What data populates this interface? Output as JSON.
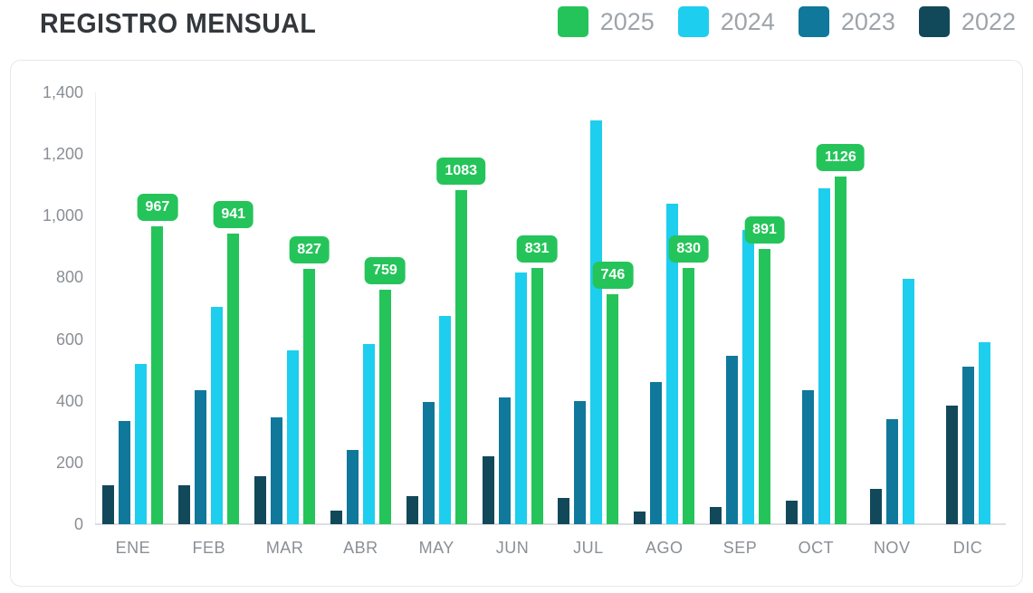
{
  "title": "REGISTRO MENSUAL",
  "legend": [
    {
      "label": "2025",
      "color": "#25c45a"
    },
    {
      "label": "2024",
      "color": "#1dceee"
    },
    {
      "label": "2023",
      "color": "#10789b"
    },
    {
      "label": "2022",
      "color": "#12495a"
    }
  ],
  "chart_data": {
    "type": "bar",
    "title": "REGISTRO MENSUAL",
    "categories": [
      "ENE",
      "FEB",
      "MAR",
      "ABR",
      "MAY",
      "JUN",
      "JUL",
      "AGO",
      "SEP",
      "OCT",
      "NOV",
      "DIC"
    ],
    "series": [
      {
        "name": "2022",
        "color": "#12495a",
        "values": [
          125,
          125,
          155,
          45,
          90,
          220,
          85,
          40,
          55,
          75,
          115,
          385
        ]
      },
      {
        "name": "2023",
        "color": "#10789b",
        "values": [
          335,
          435,
          345,
          240,
          395,
          410,
          400,
          460,
          545,
          435,
          340,
          510
        ]
      },
      {
        "name": "2024",
        "color": "#1dceee",
        "values": [
          520,
          705,
          565,
          585,
          675,
          815,
          1310,
          1040,
          955,
          1090,
          795,
          590
        ]
      },
      {
        "name": "2025",
        "color": "#25c45a",
        "data_labels": true,
        "values": [
          967,
          941,
          827,
          759,
          1083,
          831,
          746,
          830,
          891,
          1126,
          null,
          null
        ]
      }
    ],
    "ylim": [
      0,
      1400
    ],
    "yticks": [
      {
        "value": 0,
        "label": "0"
      },
      {
        "value": 200,
        "label": "200"
      },
      {
        "value": 400,
        "label": "400"
      },
      {
        "value": 600,
        "label": "600"
      },
      {
        "value": 800,
        "label": "800"
      },
      {
        "value": 1000,
        "label": "1,000"
      },
      {
        "value": 1200,
        "label": "1,200"
      },
      {
        "value": 1400,
        "label": "1,400"
      }
    ],
    "grid": false,
    "legend_position": "top-right",
    "data_label_text_color": "#ffffff"
  }
}
